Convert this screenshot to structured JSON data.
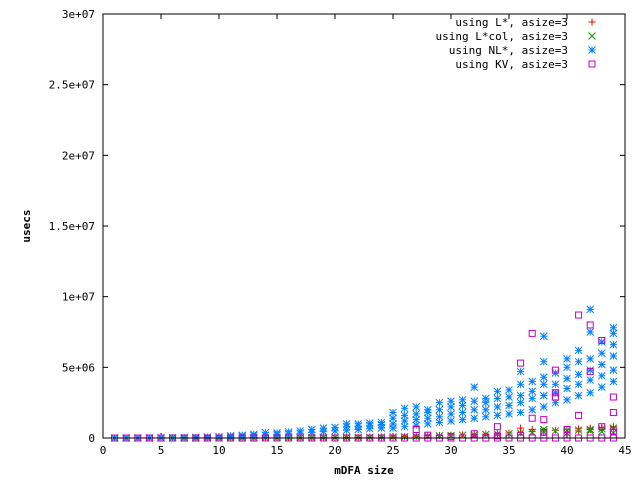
{
  "chart_data": {
    "type": "scatter",
    "xlabel": "mDFA size",
    "ylabel": "usecs",
    "xlim": [
      0,
      45
    ],
    "ylim": [
      0,
      30000000
    ],
    "x_ticks": [
      {
        "value": 0,
        "label": "0"
      },
      {
        "value": 5,
        "label": "5"
      },
      {
        "value": 10,
        "label": "10"
      },
      {
        "value": 15,
        "label": "15"
      },
      {
        "value": 20,
        "label": "20"
      },
      {
        "value": 25,
        "label": "25"
      },
      {
        "value": 30,
        "label": "30"
      },
      {
        "value": 35,
        "label": "35"
      },
      {
        "value": 40,
        "label": "40"
      },
      {
        "value": 45,
        "label": "45"
      }
    ],
    "y_ticks": [
      {
        "value": 0,
        "label": "0"
      },
      {
        "value": 5000000,
        "label": "5e+06"
      },
      {
        "value": 10000000,
        "label": "1e+07"
      },
      {
        "value": 15000000,
        "label": "1.5e+07"
      },
      {
        "value": 20000000,
        "label": "2e+07"
      },
      {
        "value": 25000000,
        "label": "2.5e+07"
      },
      {
        "value": 30000000,
        "label": "3e+07"
      }
    ],
    "grid": false,
    "legend_position": "top-right",
    "series": [
      {
        "name": "using L*, asize=3",
        "marker": "plus",
        "color": "#ff0000",
        "points": [
          [
            1,
            0
          ],
          [
            2,
            0
          ],
          [
            3,
            0
          ],
          [
            4,
            0
          ],
          [
            5,
            0
          ],
          [
            6,
            0
          ],
          [
            7,
            0
          ],
          [
            8,
            0
          ],
          [
            9,
            0
          ],
          [
            10,
            0
          ],
          [
            11,
            10000
          ],
          [
            12,
            10000
          ],
          [
            13,
            10000
          ],
          [
            14,
            15000
          ],
          [
            15,
            15000
          ],
          [
            16,
            20000
          ],
          [
            17,
            20000
          ],
          [
            18,
            25000
          ],
          [
            19,
            30000
          ],
          [
            20,
            30000
          ],
          [
            21,
            40000
          ],
          [
            22,
            50000
          ],
          [
            23,
            60000
          ],
          [
            24,
            60000
          ],
          [
            25,
            80000
          ],
          [
            26,
            100000
          ],
          [
            27,
            120000
          ],
          [
            28,
            150000
          ],
          [
            29,
            180000
          ],
          [
            30,
            200000
          ],
          [
            31,
            220000
          ],
          [
            32,
            250000
          ],
          [
            33,
            280000
          ],
          [
            34,
            300000
          ],
          [
            35,
            350000
          ],
          [
            36,
            400000
          ],
          [
            37,
            450000
          ],
          [
            38,
            500000
          ],
          [
            39,
            550000
          ],
          [
            40,
            600000
          ],
          [
            41,
            650000
          ],
          [
            42,
            700000
          ],
          [
            43,
            750000
          ],
          [
            44,
            800000
          ],
          [
            36,
            700000
          ],
          [
            37,
            600000
          ],
          [
            40,
            400000
          ],
          [
            41,
            500000
          ],
          [
            42,
            600000
          ],
          [
            43,
            700000
          ],
          [
            44,
            600000
          ]
        ]
      },
      {
        "name": "using L*col, asize=3",
        "marker": "cross",
        "color": "#00a000",
        "points": [
          [
            1,
            0
          ],
          [
            2,
            0
          ],
          [
            3,
            0
          ],
          [
            4,
            0
          ],
          [
            5,
            0
          ],
          [
            6,
            0
          ],
          [
            7,
            0
          ],
          [
            8,
            0
          ],
          [
            9,
            0
          ],
          [
            10,
            0
          ],
          [
            11,
            5000
          ],
          [
            12,
            8000
          ],
          [
            13,
            10000
          ],
          [
            14,
            12000
          ],
          [
            15,
            15000
          ],
          [
            16,
            18000
          ],
          [
            17,
            20000
          ],
          [
            18,
            22000
          ],
          [
            19,
            25000
          ],
          [
            20,
            30000
          ],
          [
            21,
            35000
          ],
          [
            22,
            45000
          ],
          [
            23,
            50000
          ],
          [
            24,
            55000
          ],
          [
            25,
            70000
          ],
          [
            26,
            90000
          ],
          [
            27,
            100000
          ],
          [
            28,
            120000
          ],
          [
            29,
            150000
          ],
          [
            30,
            170000
          ],
          [
            31,
            200000
          ],
          [
            32,
            220000
          ],
          [
            33,
            250000
          ],
          [
            34,
            280000
          ],
          [
            35,
            300000
          ],
          [
            36,
            350000
          ],
          [
            37,
            400000
          ],
          [
            38,
            450000
          ],
          [
            39,
            500000
          ],
          [
            40,
            520000
          ],
          [
            41,
            560000
          ],
          [
            42,
            600000
          ],
          [
            43,
            650000
          ],
          [
            44,
            700000
          ],
          [
            38,
            600000
          ],
          [
            40,
            350000
          ],
          [
            42,
            500000
          ],
          [
            43,
            450000
          ],
          [
            44,
            350000
          ]
        ]
      },
      {
        "name": "using NL*, asize=3",
        "marker": "star",
        "color": "#0080ff",
        "points": [
          [
            1,
            0
          ],
          [
            2,
            0
          ],
          [
            3,
            0
          ],
          [
            4,
            10000
          ],
          [
            5,
            20000
          ],
          [
            6,
            30000
          ],
          [
            7,
            40000
          ],
          [
            8,
            50000
          ],
          [
            9,
            70000
          ],
          [
            10,
            90000
          ],
          [
            11,
            100000
          ],
          [
            11,
            160000
          ],
          [
            12,
            130000
          ],
          [
            12,
            200000
          ],
          [
            13,
            180000
          ],
          [
            13,
            260000
          ],
          [
            14,
            200000
          ],
          [
            14,
            380000
          ],
          [
            15,
            250000
          ],
          [
            15,
            360000
          ],
          [
            16,
            300000
          ],
          [
            16,
            430000
          ],
          [
            17,
            350000
          ],
          [
            17,
            500000
          ],
          [
            18,
            400000
          ],
          [
            18,
            600000
          ],
          [
            19,
            450000
          ],
          [
            19,
            700000
          ],
          [
            20,
            500000
          ],
          [
            20,
            750000
          ],
          [
            21,
            550000
          ],
          [
            21,
            800000
          ],
          [
            21,
            1000000
          ],
          [
            22,
            600000
          ],
          [
            22,
            850000
          ],
          [
            22,
            1000000
          ],
          [
            23,
            650000
          ],
          [
            23,
            900000
          ],
          [
            23,
            1050000
          ],
          [
            24,
            700000
          ],
          [
            24,
            950000
          ],
          [
            24,
            1100000
          ],
          [
            25,
            700000
          ],
          [
            25,
            1000000
          ],
          [
            25,
            1400000
          ],
          [
            25,
            1800000
          ],
          [
            26,
            800000
          ],
          [
            26,
            1200000
          ],
          [
            26,
            1600000
          ],
          [
            26,
            2100000
          ],
          [
            27,
            900000
          ],
          [
            27,
            1300000
          ],
          [
            27,
            1700000
          ],
          [
            27,
            2200000
          ],
          [
            28,
            1000000
          ],
          [
            28,
            1400000
          ],
          [
            28,
            1800000
          ],
          [
            28,
            2000000
          ],
          [
            29,
            1100000
          ],
          [
            29,
            1500000
          ],
          [
            29,
            2000000
          ],
          [
            29,
            2500000
          ],
          [
            30,
            1200000
          ],
          [
            30,
            1700000
          ],
          [
            30,
            2200000
          ],
          [
            30,
            2600000
          ],
          [
            31,
            1300000
          ],
          [
            31,
            1800000
          ],
          [
            31,
            2300000
          ],
          [
            31,
            2700000
          ],
          [
            32,
            1400000
          ],
          [
            32,
            2000000
          ],
          [
            32,
            2600000
          ],
          [
            32,
            3600000
          ],
          [
            33,
            1500000
          ],
          [
            33,
            2000000
          ],
          [
            33,
            2500000
          ],
          [
            33,
            2800000
          ],
          [
            34,
            1600000
          ],
          [
            34,
            2200000
          ],
          [
            34,
            2800000
          ],
          [
            34,
            3300000
          ],
          [
            35,
            1700000
          ],
          [
            35,
            2300000
          ],
          [
            35,
            2900000
          ],
          [
            35,
            3400000
          ],
          [
            36,
            1800000
          ],
          [
            36,
            2500000
          ],
          [
            36,
            3000000
          ],
          [
            36,
            3800000
          ],
          [
            36,
            4700000
          ],
          [
            37,
            2000000
          ],
          [
            37,
            2800000
          ],
          [
            37,
            3300000
          ],
          [
            37,
            4000000
          ],
          [
            38,
            2200000
          ],
          [
            38,
            3000000
          ],
          [
            38,
            3800000
          ],
          [
            38,
            4300000
          ],
          [
            38,
            5400000
          ],
          [
            38,
            7200000
          ],
          [
            39,
            2500000
          ],
          [
            39,
            3200000
          ],
          [
            39,
            3800000
          ],
          [
            39,
            4600000
          ],
          [
            40,
            2700000
          ],
          [
            40,
            3500000
          ],
          [
            40,
            4200000
          ],
          [
            40,
            5000000
          ],
          [
            40,
            5600000
          ],
          [
            41,
            3000000
          ],
          [
            41,
            3800000
          ],
          [
            41,
            4500000
          ],
          [
            41,
            5400000
          ],
          [
            41,
            6200000
          ],
          [
            42,
            3200000
          ],
          [
            42,
            4100000
          ],
          [
            42,
            4800000
          ],
          [
            42,
            5600000
          ],
          [
            42,
            7500000
          ],
          [
            42,
            9100000
          ],
          [
            43,
            3600000
          ],
          [
            43,
            4400000
          ],
          [
            43,
            5200000
          ],
          [
            43,
            6000000
          ],
          [
            43,
            6800000
          ],
          [
            44,
            4000000
          ],
          [
            44,
            4800000
          ],
          [
            44,
            5800000
          ],
          [
            44,
            6600000
          ],
          [
            44,
            7400000
          ],
          [
            44,
            7800000
          ]
        ]
      },
      {
        "name": "using KV, asize=3",
        "marker": "square",
        "color": "#c000c0",
        "points": [
          [
            1,
            0
          ],
          [
            2,
            0
          ],
          [
            3,
            0
          ],
          [
            4,
            0
          ],
          [
            5,
            0
          ],
          [
            6,
            0
          ],
          [
            7,
            0
          ],
          [
            8,
            0
          ],
          [
            9,
            0
          ],
          [
            10,
            0
          ],
          [
            11,
            0
          ],
          [
            12,
            0
          ],
          [
            13,
            0
          ],
          [
            14,
            0
          ],
          [
            15,
            0
          ],
          [
            16,
            0
          ],
          [
            17,
            0
          ],
          [
            18,
            0
          ],
          [
            19,
            0
          ],
          [
            20,
            0
          ],
          [
            21,
            0
          ],
          [
            22,
            0
          ],
          [
            23,
            0
          ],
          [
            24,
            0
          ],
          [
            25,
            0
          ],
          [
            26,
            0
          ],
          [
            27,
            0
          ],
          [
            28,
            0
          ],
          [
            29,
            0
          ],
          [
            30,
            0
          ],
          [
            31,
            0
          ],
          [
            32,
            0
          ],
          [
            33,
            0
          ],
          [
            34,
            0
          ],
          [
            35,
            0
          ],
          [
            36,
            0
          ],
          [
            37,
            0
          ],
          [
            38,
            0
          ],
          [
            39,
            0
          ],
          [
            40,
            0
          ],
          [
            41,
            0
          ],
          [
            42,
            0
          ],
          [
            43,
            0
          ],
          [
            44,
            0
          ],
          [
            27,
            600000
          ],
          [
            28,
            200000
          ],
          [
            30,
            100000
          ],
          [
            32,
            300000
          ],
          [
            34,
            800000
          ],
          [
            34,
            150000
          ],
          [
            36,
            5300000
          ],
          [
            36,
            200000
          ],
          [
            37,
            1400000
          ],
          [
            37,
            7400000
          ],
          [
            38,
            1300000
          ],
          [
            38,
            400000
          ],
          [
            39,
            2900000
          ],
          [
            39,
            4800000
          ],
          [
            39,
            3200000
          ],
          [
            40,
            600000
          ],
          [
            41,
            8700000
          ],
          [
            41,
            1600000
          ],
          [
            42,
            8000000
          ],
          [
            42,
            4700000
          ],
          [
            43,
            6900000
          ],
          [
            43,
            800000
          ],
          [
            44,
            2900000
          ],
          [
            44,
            1800000
          ],
          [
            44,
            500000
          ]
        ]
      }
    ]
  }
}
